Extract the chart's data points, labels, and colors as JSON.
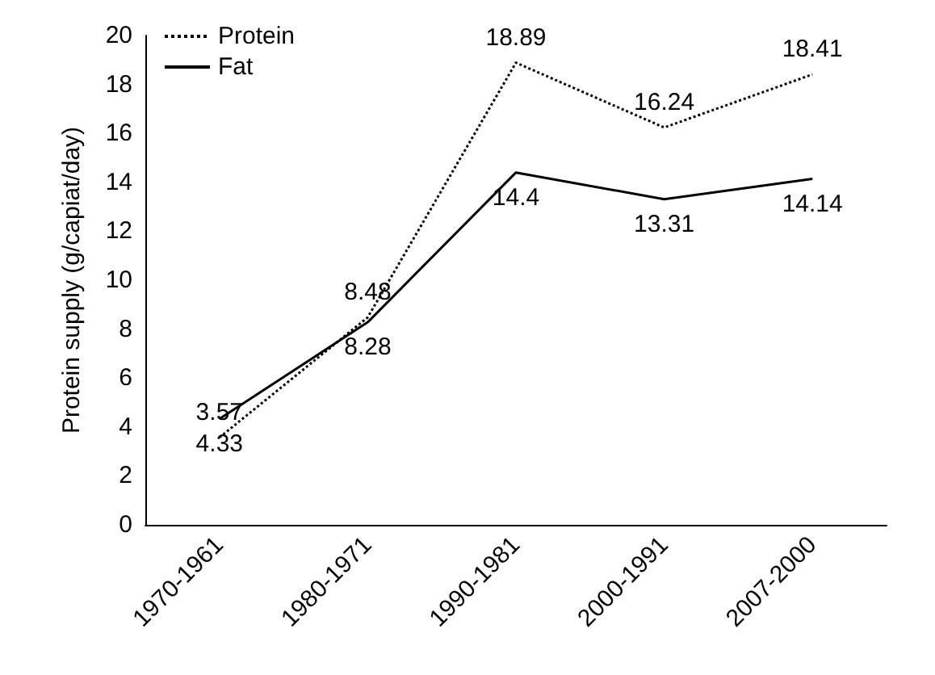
{
  "chart_data": {
    "type": "line",
    "ylabel": "Protein supply (g/capiat/day)",
    "categories": [
      "1970-1961",
      "1980-1971",
      "1990-1981",
      "2000-1991",
      "2007-2000"
    ],
    "series": [
      {
        "name": "Protein",
        "color": "#000000",
        "line_style": "dotted",
        "values": [
          3.57,
          8.48,
          18.89,
          16.24,
          18.41
        ]
      },
      {
        "name": "Fat",
        "color": "#000000",
        "line_style": "solid",
        "values": [
          4.33,
          8.28,
          14.4,
          13.31,
          14.14
        ]
      }
    ],
    "ylim": [
      0,
      20
    ],
    "yticks": [
      0,
      2,
      4,
      6,
      8,
      10,
      12,
      14,
      16,
      18,
      20
    ],
    "grid": false,
    "legend": "top left",
    "marker": "none",
    "data_labels": true
  }
}
